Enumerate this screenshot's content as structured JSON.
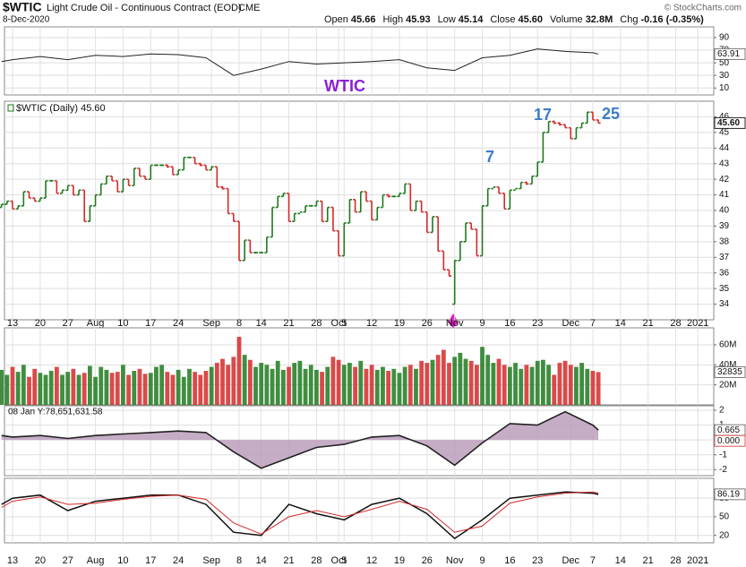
{
  "header": {
    "symbol": "$WTIC",
    "name": "Light Crude Oil - Continuous Contract (EOD)",
    "exchange": "CME",
    "date": "8-Dec-2020",
    "quote": [
      {
        "label": "Open",
        "value": "45.66"
      },
      {
        "label": "High",
        "value": "45.93"
      },
      {
        "label": "Low",
        "value": "45.14"
      },
      {
        "label": "Close",
        "value": "45.60"
      },
      {
        "label": "Volume",
        "value": "32.8M"
      },
      {
        "label": "Chg",
        "value": "-0.16 (-0.35%)"
      }
    ],
    "credit": "© StockCharts.com"
  },
  "chart_data": [
    {
      "type": "line",
      "x": [
        0,
        2,
        7,
        12,
        17,
        22,
        27,
        32,
        37,
        42,
        47,
        52,
        57,
        62,
        67,
        72,
        77,
        82,
        87,
        92,
        97,
        102,
        107,
        108
      ],
      "values": [
        52,
        55,
        60,
        55,
        62,
        60,
        64,
        63,
        58,
        30,
        40,
        52,
        48,
        50,
        52,
        55,
        42,
        38,
        58,
        62,
        72,
        68,
        66,
        63.91
      ],
      "color": "#222222",
      "ylim": [
        -1,
        107
      ],
      "yticks": [
        10,
        30,
        50,
        70,
        90
      ],
      "grid": true
    },
    {
      "type": "ohlc",
      "legend": "$WTIC (Daily) 45.60",
      "close_label": "45.60",
      "annotations": [
        "WTIC",
        "7",
        "17",
        "25"
      ],
      "annotation_colors": [
        "#8b1fd6",
        "#3d7cc9",
        "#3d7cc9",
        "#3d7cc9"
      ],
      "up_color": "#1f7a1f",
      "down_color": "#d42a2a",
      "ylim": [
        33,
        47
      ],
      "yticks": [
        34,
        35,
        36,
        37,
        38,
        39,
        40,
        41,
        42,
        43,
        44,
        45,
        46
      ],
      "grid": true,
      "open": [
        40.2,
        40.4,
        40.6,
        40.1,
        40.3,
        41.2,
        40.8,
        40.6,
        40.8,
        41.9,
        41.9,
        41.1,
        41.3,
        41.6,
        41.0,
        41.3,
        39.3,
        40.3,
        41.0,
        41.7,
        42.2,
        41.9,
        41.2,
        42.0,
        41.6,
        42.7,
        42.2,
        42.0,
        42.9,
        42.9,
        42.9,
        42.8,
        42.3,
        42.6,
        43.4,
        43.4,
        43.0,
        42.9,
        42.6,
        42.8,
        41.5,
        41.4,
        39.8,
        39.3,
        36.8,
        38.1,
        37.3,
        37.3,
        37.3,
        38.3,
        40.2,
        40.9,
        41.1,
        39.3,
        39.8,
        39.9,
        40.3,
        40.3,
        40.6,
        39.3,
        40.2,
        38.7,
        37.1,
        39.2,
        40.7,
        39.9,
        41.2,
        40.6,
        39.4,
        40.2,
        41.0,
        40.9,
        40.9,
        41.1,
        41.7,
        40.0,
        40.6,
        39.9,
        38.6,
        39.6,
        37.4,
        36.2,
        34.0,
        36.8,
        38.0,
        39.2,
        38.8,
        37.1,
        40.3,
        41.4,
        41.5,
        41.1,
        40.1,
        41.3,
        41.4,
        41.8,
        41.7,
        42.2,
        43.1,
        45.0,
        45.7,
        45.6,
        45.5,
        45.3,
        44.6,
        45.3,
        45.6,
        46.3,
        45.8
      ],
      "close": [
        40.4,
        40.6,
        40.1,
        40.3,
        41.2,
        40.8,
        40.6,
        40.8,
        41.9,
        41.9,
        41.1,
        41.3,
        41.6,
        41.0,
        41.3,
        39.3,
        40.3,
        41.0,
        41.7,
        42.2,
        41.9,
        41.2,
        42.0,
        41.6,
        42.7,
        42.2,
        42.0,
        42.9,
        42.9,
        42.9,
        42.8,
        42.3,
        42.6,
        43.4,
        43.4,
        43.0,
        42.9,
        42.6,
        42.8,
        41.5,
        41.4,
        39.8,
        39.3,
        36.8,
        38.1,
        37.3,
        37.3,
        37.3,
        38.3,
        40.2,
        40.9,
        41.1,
        39.3,
        39.8,
        39.9,
        40.3,
        40.3,
        40.6,
        39.3,
        40.2,
        38.7,
        37.1,
        39.2,
        40.7,
        39.9,
        41.2,
        40.6,
        39.4,
        40.2,
        41.0,
        40.9,
        40.9,
        41.1,
        41.7,
        40.0,
        40.6,
        39.9,
        38.6,
        39.6,
        37.4,
        36.2,
        35.8,
        36.8,
        38.0,
        39.2,
        38.8,
        37.1,
        40.3,
        41.4,
        41.5,
        41.1,
        40.1,
        41.3,
        41.4,
        41.8,
        41.7,
        42.2,
        43.1,
        45.0,
        45.7,
        45.6,
        45.5,
        45.3,
        44.6,
        45.3,
        45.6,
        46.3,
        45.8,
        45.6
      ],
      "xticks": [
        {
          "value": 2,
          "label": "13"
        },
        {
          "value": 7,
          "label": "20"
        },
        {
          "value": 12,
          "label": "27"
        },
        {
          "value": 17,
          "label": "Aug"
        },
        {
          "value": 22,
          "label": "10"
        },
        {
          "value": 27,
          "label": "17"
        },
        {
          "value": 32,
          "label": "24"
        },
        {
          "value": 38,
          "label": "Sep"
        },
        {
          "value": 43,
          "label": "8"
        },
        {
          "value": 47,
          "label": "14"
        },
        {
          "value": 52,
          "label": "21"
        },
        {
          "value": 57,
          "label": "28"
        },
        {
          "value": 61,
          "label": "Oct"
        },
        {
          "value": 62,
          "label": "5"
        },
        {
          "value": 67,
          "label": "12"
        },
        {
          "value": 72,
          "label": "19"
        },
        {
          "value": 77,
          "label": "26"
        },
        {
          "value": 82,
          "label": "Nov"
        },
        {
          "value": 87,
          "label": "9"
        },
        {
          "value": 92,
          "label": "16"
        },
        {
          "value": 97,
          "label": "23"
        },
        {
          "value": 103,
          "label": "Dec"
        },
        {
          "value": 107,
          "label": "7"
        },
        {
          "value": 112,
          "label": "14"
        },
        {
          "value": 117,
          "label": "21"
        },
        {
          "value": 122,
          "label": "28"
        },
        {
          "value": 126,
          "label": "2021"
        }
      ]
    },
    {
      "type": "bar",
      "values": [
        35,
        30,
        38,
        33,
        40,
        28,
        36,
        32,
        30,
        34,
        38,
        30,
        33,
        36,
        30,
        32,
        39,
        28,
        38,
        35,
        32,
        33,
        40,
        30,
        34,
        36,
        31,
        32,
        38,
        40,
        33,
        30,
        35,
        28,
        36,
        33,
        30,
        34,
        38,
        42,
        46,
        40,
        48,
        68,
        50,
        45,
        38,
        42,
        40,
        36,
        44,
        35,
        38,
        42,
        44,
        36,
        40,
        35,
        33,
        38,
        48,
        45,
        40,
        42,
        38,
        44,
        36,
        40,
        35,
        38,
        34,
        36,
        32,
        38,
        40,
        36,
        44,
        42,
        45,
        50,
        55,
        42,
        48,
        52,
        46,
        44,
        40,
        58,
        50,
        42,
        46,
        40,
        38,
        42,
        36,
        40,
        38,
        44,
        45,
        40,
        30,
        42,
        44,
        40,
        38,
        42,
        36,
        34,
        32.8
      ],
      "value_label": "32835",
      "ylim": [
        0,
        77
      ],
      "yticks": [
        {
          "value": 20,
          "label": "20M"
        },
        {
          "value": 40,
          "label": "40M"
        },
        {
          "value": 60,
          "label": "60M"
        }
      ],
      "grid": true
    },
    {
      "type": "area",
      "note": "08 Jan Y:78,651,631.58",
      "x": [
        0,
        2,
        7,
        12,
        17,
        22,
        27,
        32,
        37,
        42,
        47,
        52,
        57,
        62,
        67,
        72,
        77,
        82,
        87,
        92,
        97,
        102,
        107,
        108
      ],
      "values": [
        0.3,
        0.2,
        0.3,
        0.1,
        0.3,
        0.4,
        0.5,
        0.6,
        0.5,
        -0.8,
        -1.9,
        -1.2,
        -0.5,
        -0.3,
        0.2,
        0.3,
        -0.4,
        -1.7,
        -0.2,
        1.1,
        1.0,
        1.9,
        1.0,
        0.665
      ],
      "tags": [
        "0.665",
        "0.000"
      ],
      "color": "#222222",
      "fill": "#b899b8",
      "ylim": [
        -2.4,
        2.3
      ],
      "yticks": [
        -2,
        -1,
        0,
        1,
        2
      ],
      "grid": true
    },
    {
      "type": "multiline",
      "x": [
        0,
        2,
        7,
        12,
        17,
        22,
        27,
        32,
        37,
        42,
        47,
        52,
        57,
        62,
        67,
        72,
        77,
        82,
        87,
        92,
        97,
        102,
        107,
        108
      ],
      "series": [
        {
          "color": "#111111",
          "values": [
            70,
            80,
            85,
            60,
            75,
            80,
            85,
            85,
            70,
            25,
            20,
            70,
            55,
            45,
            70,
            80,
            55,
            15,
            45,
            80,
            85,
            90,
            88,
            86.19
          ]
        },
        {
          "color": "#d42a2a",
          "values": [
            65,
            75,
            82,
            70,
            72,
            78,
            83,
            85,
            78,
            40,
            22,
            50,
            60,
            50,
            62,
            75,
            62,
            25,
            35,
            72,
            82,
            88,
            90,
            88
          ]
        }
      ],
      "ylim": [
        8,
        112
      ],
      "yticks": [
        20,
        50,
        80
      ],
      "grid": true
    }
  ]
}
